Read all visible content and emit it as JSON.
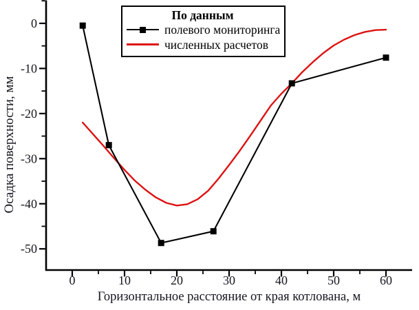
{
  "figure": {
    "background": "#ffffff"
  },
  "legend": {
    "title": "По данным"
  },
  "chart_data": {
    "type": "line",
    "title": "",
    "xlabel": "Горизонтальное расстояние от края котлована, м",
    "ylabel": "Осадка поверхности, мм",
    "xlim": [
      -5,
      65
    ],
    "ylim": [
      -54.7,
      5.1
    ],
    "x_major_ticks": [
      0,
      10,
      20,
      30,
      40,
      50,
      60
    ],
    "x_minor_ticks": [
      5,
      15,
      25,
      35,
      45,
      55
    ],
    "y_major_ticks": [
      0,
      -10,
      -20,
      -30,
      -40,
      -50
    ],
    "y_minor_ticks": [
      5,
      -5,
      -15,
      -25,
      -35,
      -45,
      -55
    ],
    "grid": false,
    "legend_position": "top-inside",
    "axis_color": "#000000",
    "tick_label_color": "#15151f",
    "series": [
      {
        "name": "полевого мониторинга",
        "type": "line+marker",
        "marker": "square",
        "color": "#000000",
        "points": [
          [
            2,
            -0.5
          ],
          [
            7,
            -27
          ],
          [
            17,
            -48.7
          ],
          [
            27,
            -46.1
          ],
          [
            42,
            -13.3
          ],
          [
            60,
            -7.6
          ]
        ]
      },
      {
        "name": "численных расчетов",
        "type": "smooth-line",
        "color": "#dd1111",
        "points": [
          [
            2,
            -22
          ],
          [
            4,
            -24.6
          ],
          [
            6,
            -27.2
          ],
          [
            8,
            -29.9
          ],
          [
            10,
            -32.5
          ],
          [
            12,
            -34.9
          ],
          [
            14,
            -36.9
          ],
          [
            16,
            -38.6
          ],
          [
            18,
            -39.8
          ],
          [
            20,
            -40.4
          ],
          [
            22,
            -40.1
          ],
          [
            24,
            -39.0
          ],
          [
            26,
            -37.1
          ],
          [
            28,
            -34.4
          ],
          [
            30,
            -31.4
          ],
          [
            32,
            -28.3
          ],
          [
            34,
            -25.0
          ],
          [
            36,
            -21.6
          ],
          [
            38,
            -18.2
          ],
          [
            40,
            -15.6
          ],
          [
            42,
            -13.3
          ],
          [
            44,
            -10.8
          ],
          [
            46,
            -8.6
          ],
          [
            48,
            -6.6
          ],
          [
            50,
            -4.9
          ],
          [
            52,
            -3.6
          ],
          [
            54,
            -2.6
          ],
          [
            56,
            -1.9
          ],
          [
            58,
            -1.5
          ],
          [
            60,
            -1.4
          ]
        ]
      }
    ]
  }
}
